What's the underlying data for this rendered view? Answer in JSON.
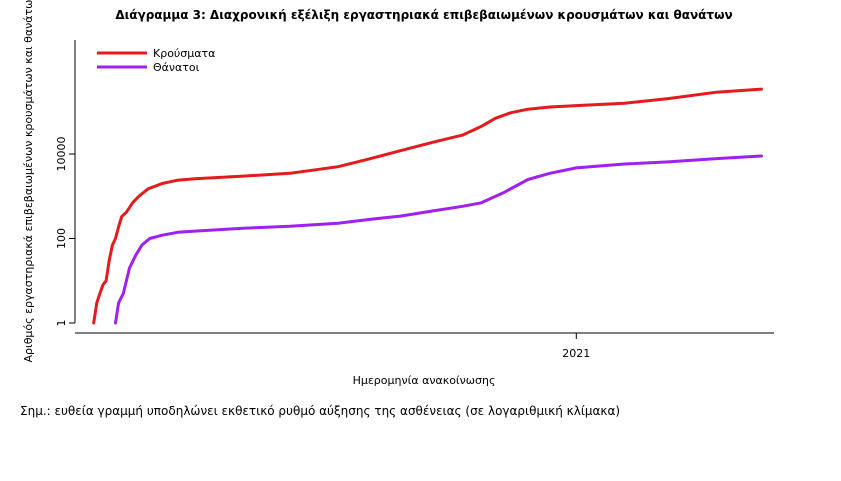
{
  "chart_data": {
    "type": "line",
    "title": "Διάγραμμα 3: Διαχρονική εξέλιξη εργαστηριακά επιβεβαιωμένων κρουσμάτων και θανάτων",
    "xlabel": "Ημερομηνία ανακοίνωσης",
    "ylabel": "Αριθμός εργαστηριακά επιβεβαιωμένων κρουσμάτων και θανάτων",
    "y_scale": "log",
    "ylim": [
      1,
      5000000
    ],
    "y_ticks": [
      {
        "value": 1,
        "label": "1"
      },
      {
        "value": 100,
        "label": "100"
      },
      {
        "value": 10000,
        "label": "10000"
      }
    ],
    "xlim": [
      "2020-02-14",
      "2021-05-08"
    ],
    "x_ticks": [
      {
        "value": "2021-01-01",
        "label": "2021"
      }
    ],
    "legend_position": "top-left",
    "series": [
      {
        "name": "Κρούσματα",
        "color": "#e41a1c",
        "points": [
          [
            "2020-02-26",
            1
          ],
          [
            "2020-02-28",
            3
          ],
          [
            "2020-03-01",
            5
          ],
          [
            "2020-03-03",
            8
          ],
          [
            "2020-03-05",
            10
          ],
          [
            "2020-03-07",
            30
          ],
          [
            "2020-03-09",
            70
          ],
          [
            "2020-03-11",
            100
          ],
          [
            "2020-03-13",
            190
          ],
          [
            "2020-03-15",
            330
          ],
          [
            "2020-03-18",
            420
          ],
          [
            "2020-03-22",
            700
          ],
          [
            "2020-03-26",
            1000
          ],
          [
            "2020-04-01",
            1500
          ],
          [
            "2020-04-10",
            2000
          ],
          [
            "2020-04-20",
            2400
          ],
          [
            "2020-05-01",
            2600
          ],
          [
            "2020-06-01",
            3000
          ],
          [
            "2020-07-01",
            3500
          ],
          [
            "2020-08-01",
            5000
          ],
          [
            "2020-08-20",
            7500
          ],
          [
            "2020-09-10",
            12000
          ],
          [
            "2020-10-01",
            19000
          ],
          [
            "2020-10-20",
            28000
          ],
          [
            "2020-11-01",
            45000
          ],
          [
            "2020-11-10",
            70000
          ],
          [
            "2020-11-20",
            95000
          ],
          [
            "2020-12-01",
            115000
          ],
          [
            "2020-12-15",
            130000
          ],
          [
            "2021-01-01",
            140000
          ],
          [
            "2021-02-01",
            160000
          ],
          [
            "2021-03-01",
            205000
          ],
          [
            "2021-04-01",
            290000
          ],
          [
            "2021-04-30",
            345000
          ]
        ]
      },
      {
        "name": "Θάνατοι",
        "color": "#a020f0",
        "points": [
          [
            "2020-03-11",
            1
          ],
          [
            "2020-03-13",
            3
          ],
          [
            "2020-03-16",
            5
          ],
          [
            "2020-03-18",
            10
          ],
          [
            "2020-03-20",
            20
          ],
          [
            "2020-03-24",
            40
          ],
          [
            "2020-03-28",
            70
          ],
          [
            "2020-04-02",
            100
          ],
          [
            "2020-04-10",
            120
          ],
          [
            "2020-04-20",
            140
          ],
          [
            "2020-05-01",
            150
          ],
          [
            "2020-06-01",
            175
          ],
          [
            "2020-07-01",
            195
          ],
          [
            "2020-08-01",
            230
          ],
          [
            "2020-08-20",
            280
          ],
          [
            "2020-09-10",
            340
          ],
          [
            "2020-10-01",
            450
          ],
          [
            "2020-10-20",
            580
          ],
          [
            "2020-11-01",
            700
          ],
          [
            "2020-11-15",
            1200
          ],
          [
            "2020-12-01",
            2500
          ],
          [
            "2020-12-15",
            3500
          ],
          [
            "2021-01-01",
            4700
          ],
          [
            "2021-02-01",
            5800
          ],
          [
            "2021-03-01",
            6500
          ],
          [
            "2021-04-01",
            7800
          ],
          [
            "2021-04-30",
            9000
          ]
        ]
      }
    ]
  },
  "note": "Σημ.: ευθεία γραμμή υποδηλώνει εκθετικό ρυθμό αύξησης της ασθένειας (σε λογαριθμική κλίμακα)"
}
